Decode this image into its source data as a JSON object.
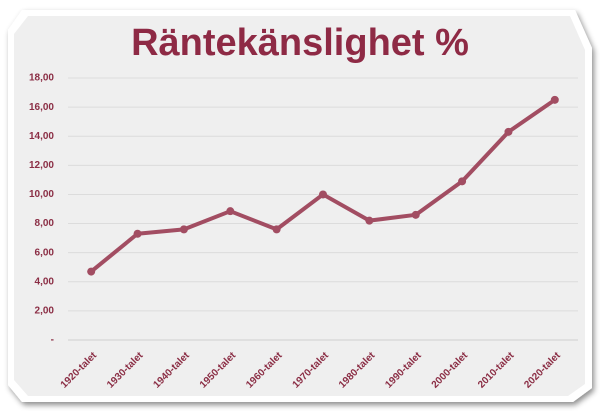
{
  "chart_data": {
    "type": "line",
    "title": "Räntekänslighet %",
    "categories": [
      "1920-talet",
      "1930-talet",
      "1940-talet",
      "1950-talet",
      "1960-talet",
      "1970-talet",
      "1980-talet",
      "1990-talet",
      "2000-talet",
      "2010-talet",
      "2020-talet"
    ],
    "series": [
      {
        "name": "Räntekänslighet %",
        "color": "#a24d62",
        "values": [
          4.7,
          7.3,
          7.6,
          8.85,
          7.6,
          10.0,
          8.2,
          8.6,
          10.9,
          14.3,
          16.5
        ]
      }
    ],
    "ylim": [
      0,
      18
    ],
    "yticks": [
      {
        "value": 0,
        "label": "-"
      },
      {
        "value": 2,
        "label": "2,00"
      },
      {
        "value": 4,
        "label": "4,00"
      },
      {
        "value": 6,
        "label": "6,00"
      },
      {
        "value": 8,
        "label": "8,00"
      },
      {
        "value": 10,
        "label": "10,00"
      },
      {
        "value": 12,
        "label": "12,00"
      },
      {
        "value": 14,
        "label": "14,00"
      },
      {
        "value": 16,
        "label": "16,00"
      },
      {
        "value": 18,
        "label": "18,00"
      }
    ],
    "grid": true
  }
}
